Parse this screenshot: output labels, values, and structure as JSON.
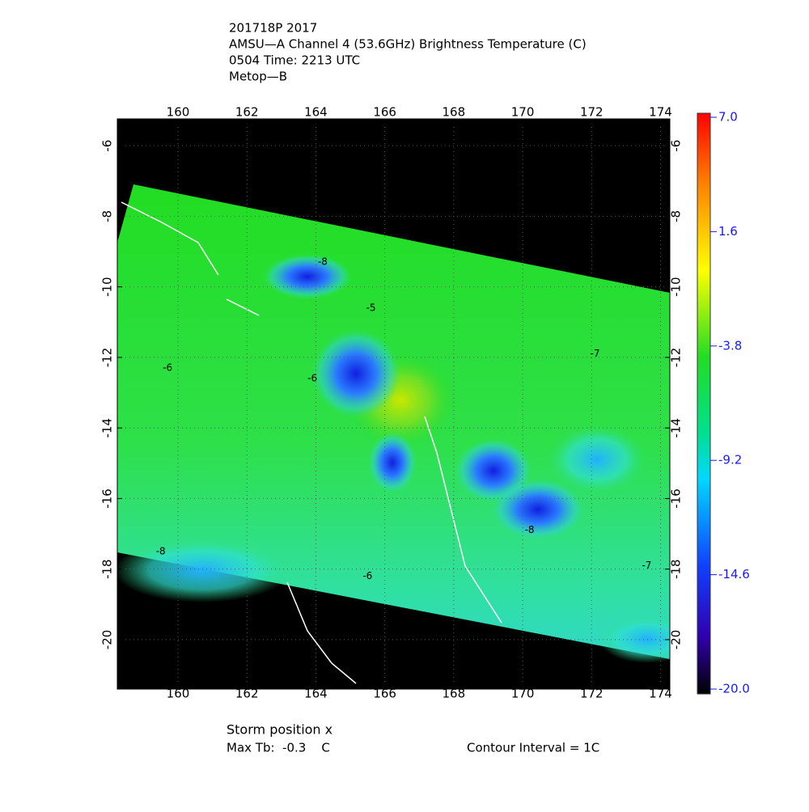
{
  "header": {
    "lines": [
      "201718P 2017",
      "AMSU—A Channel 4 (53.6GHz) Brightness Temperature (C)",
      "0504 Time: 2213 UTC",
      "Metop—B"
    ]
  },
  "map": {
    "xlim": [
      158.24,
      174.27
    ],
    "ylim": [
      -21.4,
      -5.24
    ],
    "xticks": [
      160,
      162,
      164,
      166,
      168,
      170,
      172,
      174
    ],
    "yticks": [
      -6,
      -8,
      -10,
      -12,
      -14,
      -16,
      -18,
      -20
    ],
    "contour_labels": [
      {
        "lon": 164.2,
        "lat": -9.3,
        "value": -8
      },
      {
        "lon": 165.6,
        "lat": -10.6,
        "value": -5
      },
      {
        "lon": 159.7,
        "lat": -12.3,
        "value": -6
      },
      {
        "lon": 163.9,
        "lat": -12.6,
        "value": -6
      },
      {
        "lon": 172.1,
        "lat": -11.9,
        "value": -7
      },
      {
        "lon": 170.2,
        "lat": -16.9,
        "value": -8
      },
      {
        "lon": 159.5,
        "lat": -17.5,
        "value": -8
      },
      {
        "lon": 173.6,
        "lat": -17.9,
        "value": -7
      },
      {
        "lon": 165.5,
        "lat": -18.2,
        "value": -6
      }
    ]
  },
  "colorbar": {
    "lim": [
      -20,
      7
    ],
    "ticks": [
      {
        "value": 7,
        "label": "7.0"
      },
      1.6,
      -3.8,
      -9.2,
      -14.6,
      {
        "value": -20,
        "label": "-20.0"
      }
    ]
  },
  "footer": {
    "storm": "Storm position x",
    "max_tb": "Max Tb:  -0.3    C",
    "contour": "Contour Interval = 1C"
  }
}
